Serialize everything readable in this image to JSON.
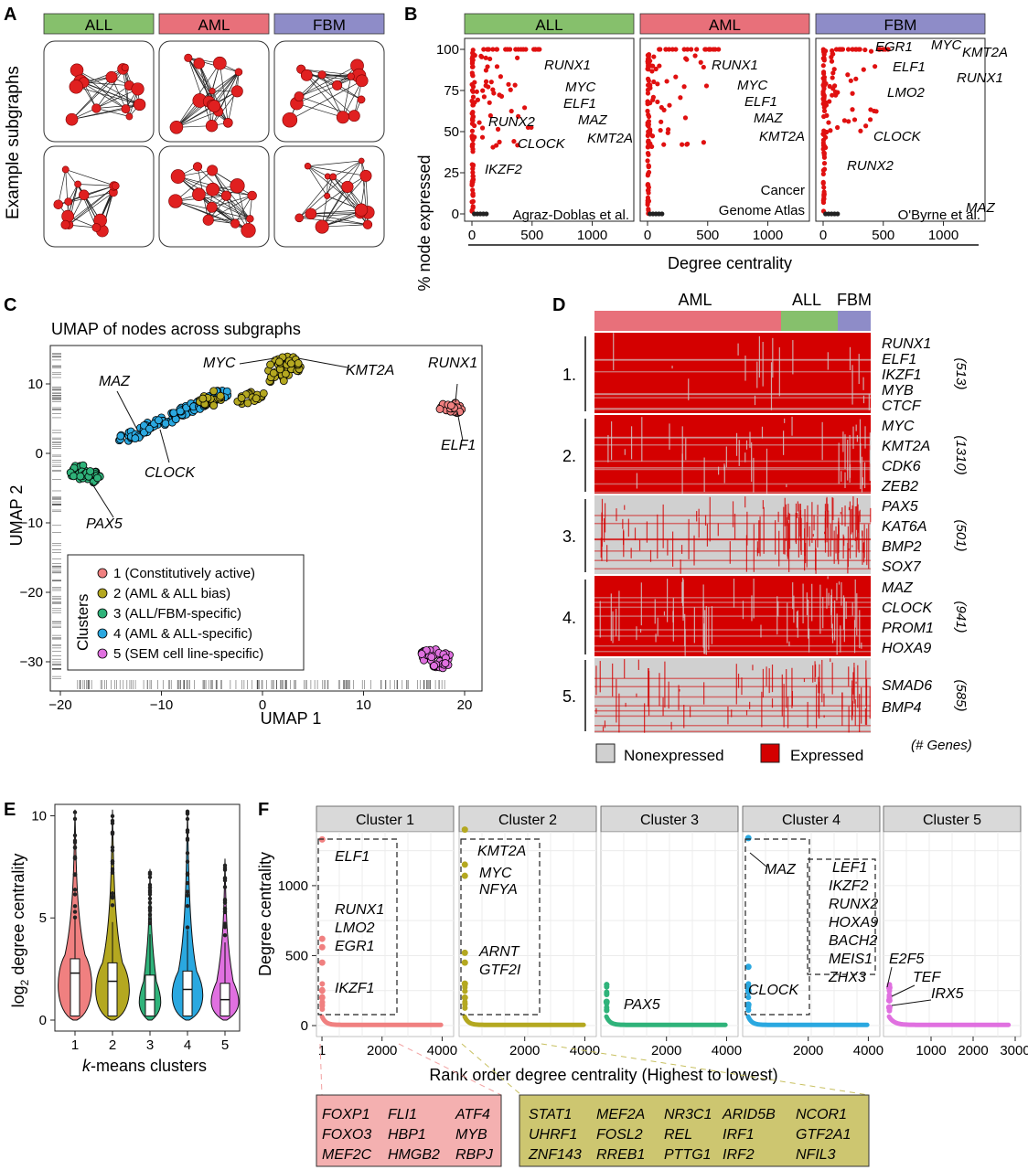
{
  "panels": {
    "A": {
      "letter": "A",
      "ylabel": "Example subgraphs",
      "groups": [
        {
          "label": "ALL",
          "color": "#86c06c"
        },
        {
          "label": "AML",
          "color": "#e8707a"
        },
        {
          "label": "FBM",
          "color": "#8e8cc8"
        }
      ]
    },
    "B": {
      "letter": "B",
      "ylabel": "% node expressed",
      "xlabel": "Degree centrality",
      "facets": [
        {
          "label": "ALL",
          "color": "#86c06c",
          "source": "Agraz-Doblas et al.",
          "genes": [
            "RUNX1",
            "MYC",
            "ELF1",
            "MAZ",
            "KMT2A",
            "RUNX2",
            "CLOCK",
            "IKZF2"
          ]
        },
        {
          "label": "AML",
          "color": "#e8707a",
          "source": "Cancer Genome Atlas",
          "genes": [
            "RUNX1",
            "MYC",
            "ELF1",
            "MAZ",
            "KMT2A"
          ]
        },
        {
          "label": "FBM",
          "color": "#8e8cc8",
          "source": "O'Byrne et al.",
          "genes": [
            "EGR1",
            "MYC",
            "ELF1",
            "RUNX1",
            "KMT2A",
            "LMO2",
            "CLOCK",
            "RUNX2",
            "MAZ"
          ]
        }
      ],
      "yticks": [
        "0",
        "25",
        "50",
        "75",
        "100"
      ],
      "xticks": [
        "0",
        "500",
        "1000"
      ]
    },
    "C": {
      "letter": "C",
      "title": "UMAP of nodes across subgraphs",
      "xlabel": "UMAP 1",
      "ylabel": "UMAP 2",
      "xticks": [
        "-20",
        "-10",
        "0",
        "10",
        "20"
      ],
      "yticks": [
        "10",
        "0",
        "-10",
        "-20",
        "-30"
      ],
      "legend_title": "Clusters",
      "legend": [
        {
          "label": "1 (Constitutively active)",
          "color": "#f08080"
        },
        {
          "label": "2 (AML & ALL bias)",
          "color": "#b4a820"
        },
        {
          "label": "3 (ALL/FBM-specific)",
          "color": "#2fb37a"
        },
        {
          "label": "4 (AML & ALL-specific)",
          "color": "#2aa8e0"
        },
        {
          "label": "5 (SEM cell line-specific)",
          "color": "#e070e0"
        }
      ],
      "gene_labels": [
        "MYC",
        "KMT2A",
        "RUNX1",
        "MAZ",
        "ELF1",
        "CLOCK",
        "PAX5"
      ]
    },
    "D": {
      "letter": "D",
      "groups": [
        "AML",
        "ALL",
        "FBM"
      ],
      "clusters": [
        {
          "num": "1.",
          "genes": [
            "RUNX1",
            "ELF1",
            "IKZF1",
            "MYB",
            "CTCF"
          ],
          "count": "(513)"
        },
        {
          "num": "2.",
          "genes": [
            "MYC",
            "KMT2A",
            "CDK6",
            "ZEB2"
          ],
          "count": "(1310)"
        },
        {
          "num": "3.",
          "genes": [
            "PAX5",
            "KAT6A",
            "BMP2",
            "SOX7"
          ],
          "count": "(501)"
        },
        {
          "num": "4.",
          "genes": [
            "MAZ",
            "CLOCK",
            "PROM1",
            "HOXA9"
          ],
          "count": "(941)"
        },
        {
          "num": "5.",
          "genes": [
            "SMAD6",
            "BMP4"
          ],
          "count": "(585)"
        }
      ],
      "legend_nonexpressed": "Nonexpressed",
      "legend_expressed": "Expressed",
      "genes_caption": "(# Genes)"
    },
    "E": {
      "letter": "E",
      "ylabel": "log2 degree centrality",
      "ylabel_base": "log",
      "ylabel_sub": "2",
      "ylabel_rest": " degree centrality",
      "xlabel_k": "k",
      "xlabel_rest": "-means clusters",
      "xticks": [
        "1",
        "2",
        "3",
        "4",
        "5"
      ],
      "yticks": [
        "0",
        "5",
        "10"
      ]
    },
    "F": {
      "letter": "F",
      "ylabel": "Degree centrality",
      "xlabel": "Rank order degree centrality (Highest to lowest)",
      "yticks": [
        "0",
        "500",
        "1000"
      ],
      "facets": [
        {
          "title": "Cluster 1",
          "xticks": [
            "1",
            "2000",
            "4000"
          ],
          "genes": [
            "ELF1",
            "RUNX1",
            "LMO2",
            "EGR1",
            "IKZF1"
          ]
        },
        {
          "title": "Cluster 2",
          "xticks": [
            "2000",
            "4000"
          ],
          "genes": [
            "KMT2A",
            "MYC",
            "NFYA",
            "ARNT",
            "GTF2I"
          ]
        },
        {
          "title": "Cluster 3",
          "xticks": [
            "2000",
            "4000"
          ],
          "genes": [
            "PAX5"
          ]
        },
        {
          "title": "Cluster 4",
          "xticks": [
            "2000",
            "4000"
          ],
          "genes": [
            "MAZ",
            "LEF1",
            "IKZF2",
            "RUNX2",
            "HOXA9",
            "BACH2",
            "MEIS1",
            "ZHX3",
            "CLOCK"
          ]
        },
        {
          "title": "Cluster 5",
          "xticks": [
            "1000",
            "2000",
            "3000"
          ],
          "genes": [
            "E2F5",
            "TEF",
            "IRX5"
          ]
        }
      ],
      "box1_genes": [
        [
          "FOXP1",
          "FLI1",
          "ATF4"
        ],
        [
          "FOXO3",
          "HBP1",
          "MYB"
        ],
        [
          "MEF2C",
          "HMGB2",
          "RBPJ"
        ]
      ],
      "box2_genes": [
        [
          "STAT1",
          "MEF2A",
          "NR3C1",
          "ARID5B",
          "NCOR1"
        ],
        [
          "UHRF1",
          "FOSL2",
          "REL",
          "IRF1",
          "GTF2A1"
        ],
        [
          "ZNF143",
          "RREB1",
          "PTTG1",
          "IRF2",
          "NFIL3"
        ]
      ]
    }
  }
}
